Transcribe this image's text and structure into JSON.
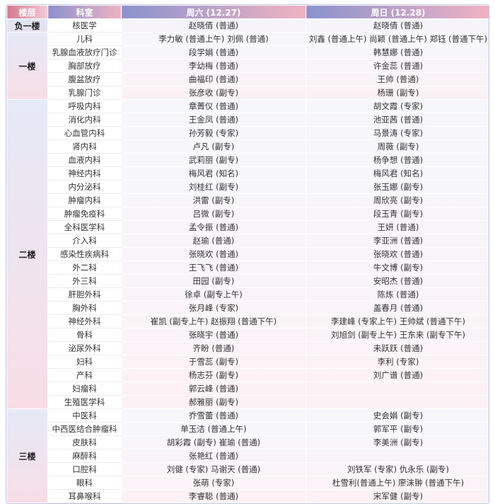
{
  "table": {
    "headers": [
      "楼层",
      "科室",
      "周六 (12.27)",
      "周日 (12.28)"
    ],
    "sections": [
      {
        "floor": "负一楼",
        "rows": [
          {
            "dept": "核医学",
            "sat": "赵晓倩 (普通)",
            "sun": "赵晓倩 (普通)"
          }
        ]
      },
      {
        "floor": "一楼",
        "rows": [
          {
            "dept": "儿科",
            "sat": "李力敏 (普通上午) 刘佩 (普通)",
            "sun": "刘鑫 (普通上午) 尚颖 (普通上午) 郑钰 (普通下午)"
          },
          {
            "dept": "乳腺血液放疗门诊",
            "sat": "段学娟 (普通)",
            "sun": "韩慧娜 (普通)"
          },
          {
            "dept": "胸部放疗",
            "sat": "李幼梅 (普通)",
            "sun": "许金蕊 (普通)"
          },
          {
            "dept": "腹盆放疗",
            "sat": "曲福印 (普通)",
            "sun": "王帅 (普通)"
          },
          {
            "dept": "乳腺门诊",
            "sat": "张彦收 (副专)",
            "sun": "杨珊 (副专)"
          }
        ]
      },
      {
        "floor": "二楼",
        "rows": [
          {
            "dept": "呼吸内科",
            "sat": "章菁仪 (普通)",
            "sun": "胡文霞 (专家)"
          },
          {
            "dept": "消化内科",
            "sat": "王金凤 (普通)",
            "sun": "池亚茜 (普通)"
          },
          {
            "dept": "心血管内科",
            "sat": "孙芳毅 (专家)",
            "sun": "马景涛 (专家)"
          },
          {
            "dept": "肾内科",
            "sat": "卢凡 (副专)",
            "sun": "周薇 (副专)"
          },
          {
            "dept": "血液内科",
            "sat": "武莉丽 (副专)",
            "sun": "杨争想 (普通)"
          },
          {
            "dept": "神经内科",
            "sat": "梅风君 (知名)",
            "sun": "梅风君 (知名)"
          },
          {
            "dept": "内分泌科",
            "sat": "刘桂红 (副专)",
            "sun": "张玉娜 (副专)"
          },
          {
            "dept": "肿瘤内科",
            "sat": "洪雷 (副专)",
            "sun": "周欣亮 (副专)"
          },
          {
            "dept": "肿瘤免疫科",
            "sat": "吕微 (副专)",
            "sun": "段玉青 (副专)"
          },
          {
            "dept": "全科医学科",
            "sat": "孟令振 (普通)",
            "sun": "王妍 (普通)"
          },
          {
            "dept": "介入科",
            "sat": "赵瑜 (普通)",
            "sun": "李亚洲 (普通)"
          },
          {
            "dept": "感染性疾病科",
            "sat": "张晓欢 (普通)",
            "sun": "张晓欢 (普通)"
          },
          {
            "dept": "外二科",
            "sat": "王飞飞 (普通)",
            "sun": "牛文博 (副专)"
          },
          {
            "dept": "外三科",
            "sat": "田园 (副专)",
            "sun": "安昭杰 (普通)"
          },
          {
            "dept": "肝胆外科",
            "sat": "徐卓 (副专上午)",
            "sun": "陈炼 (普通)"
          },
          {
            "dept": "胸外科",
            "sat": "张月峰 (专家)",
            "sun": "盖春月 (普通)"
          },
          {
            "dept": "神经外科",
            "sat": "崔凯 (副专上午) 赵振翔 (普通下午)",
            "sun": "李建峰 (专家上午) 王帅斌 (普通下午)"
          },
          {
            "dept": "骨科",
            "sat": "张晓宇 (普通)",
            "sun": "刘旭剑 (副专上午) 王东来 (副专下午)"
          },
          {
            "dept": "泌尿外科",
            "sat": "齐盼 (普通)",
            "sun": "未跃跃 (普通)"
          },
          {
            "dept": "妇科",
            "sat": "于雪蕊 (副专)",
            "sun": "李利 (专家)"
          },
          {
            "dept": "产科",
            "sat": "杨志芬 (副专)",
            "sun": "刘广谱 (普通)"
          },
          {
            "dept": "妇瘤科",
            "sat": "郭云峰 (普通)",
            "sun": ""
          },
          {
            "dept": "生殖医学科",
            "sat": "郝雅丽 (副专)",
            "sun": ""
          }
        ]
      },
      {
        "floor": "三楼",
        "rows": [
          {
            "dept": "中医科",
            "sat": "乔雪蕾 (普通)",
            "sun": "史会娟 (副专)"
          },
          {
            "dept": "中西医结合肿瘤科",
            "sat": "单玉洁 (普通上午)",
            "sun": "郭军平 (副专)"
          },
          {
            "dept": "皮肤科",
            "sat": "胡彩霞 (副专) 崔瑜 (普通)",
            "sun": "李美洲 (副专)"
          },
          {
            "dept": "麻醉科",
            "sat": "张艳红 (普通)",
            "sun": ""
          },
          {
            "dept": "口腔科",
            "sat": "刘健 (专家) 马谢天 (普通)",
            "sun": "刘铁军 (专家) 仇永乐 (副专)"
          },
          {
            "dept": "眼科",
            "sat": "张萌 (专家)",
            "sun": "杜雪利(普通上午) 廖沫翀 (普通下午)"
          },
          {
            "dept": "耳鼻喉科",
            "sat": "李睿聪 (普通)",
            "sun": "宋军健 (副专)"
          }
        ]
      }
    ]
  },
  "colors": {
    "header_gradient_start": "#8a92cd",
    "header_gradient_end": "#f0b2c2",
    "floor_header_gradient_start": "#d6788f",
    "floor_header_gradient_end": "#f4ccd6",
    "section_gradient_top": "#e6e9f6",
    "section_gradient_bottom": "#f8dde5",
    "header_text": "#ffffff",
    "body_text": "#2f2f2f"
  }
}
